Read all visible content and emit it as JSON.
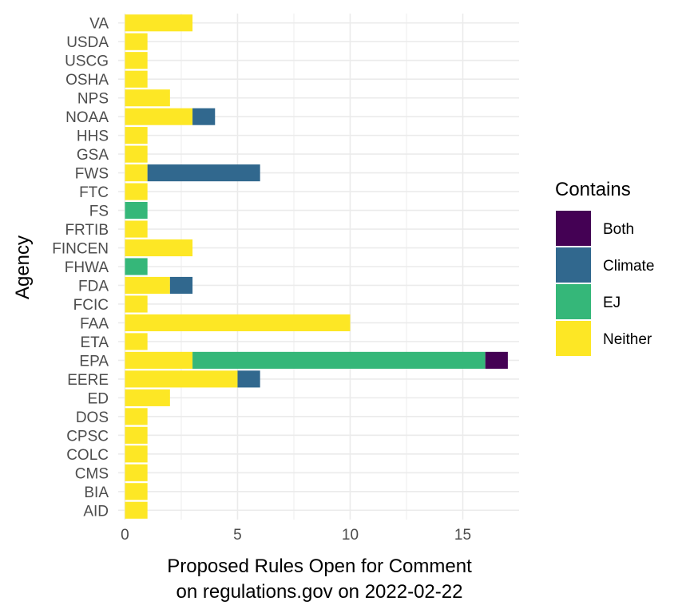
{
  "chart_data": {
    "type": "bar",
    "orientation": "horizontal",
    "stacked": true,
    "categories": [
      "AID",
      "BIA",
      "CMS",
      "COLC",
      "CPSC",
      "DOS",
      "ED",
      "EERE",
      "EPA",
      "ETA",
      "FAA",
      "FCIC",
      "FDA",
      "FHWA",
      "FINCEN",
      "FRTIB",
      "FS",
      "FTC",
      "FWS",
      "GSA",
      "HHS",
      "NOAA",
      "NPS",
      "OSHA",
      "USCG",
      "USDA",
      "VA"
    ],
    "series": [
      {
        "name": "Neither",
        "color": "#fde725",
        "values": [
          1,
          1,
          1,
          1,
          1,
          1,
          2,
          5,
          3,
          1,
          10,
          1,
          2,
          0,
          3,
          1,
          0,
          1,
          1,
          1,
          1,
          3,
          2,
          1,
          1,
          1,
          3
        ]
      },
      {
        "name": "EJ",
        "color": "#35b779",
        "values": [
          0,
          0,
          0,
          0,
          0,
          0,
          0,
          0,
          13,
          0,
          0,
          0,
          0,
          1,
          0,
          0,
          1,
          0,
          0,
          0,
          0,
          0,
          0,
          0,
          0,
          0,
          0
        ]
      },
      {
        "name": "Climate",
        "color": "#31688e",
        "values": [
          0,
          0,
          0,
          0,
          0,
          0,
          0,
          1,
          0,
          0,
          0,
          0,
          1,
          0,
          0,
          0,
          0,
          0,
          5,
          0,
          0,
          1,
          0,
          0,
          0,
          0,
          0
        ]
      },
      {
        "name": "Both",
        "color": "#440154",
        "values": [
          0,
          0,
          0,
          0,
          0,
          0,
          0,
          0,
          1,
          0,
          0,
          0,
          0,
          0,
          0,
          0,
          0,
          0,
          0,
          0,
          0,
          0,
          0,
          0,
          0,
          0,
          0
        ]
      }
    ],
    "x_ticks": [
      0,
      5,
      10,
      15
    ],
    "xlim": [
      -0.3,
      17.5
    ],
    "xlabel": "Proposed Rules Open for Comment\non regulations.gov on 2022-02-22",
    "xlabel_lines": [
      "Proposed Rules Open for Comment",
      "on regulations.gov on 2022-02-22"
    ],
    "ylabel": "Agency",
    "legend": {
      "title": "Contains",
      "position": "right",
      "entries": [
        "Both",
        "Climate",
        "EJ",
        "Neither"
      ]
    },
    "grid": true
  }
}
